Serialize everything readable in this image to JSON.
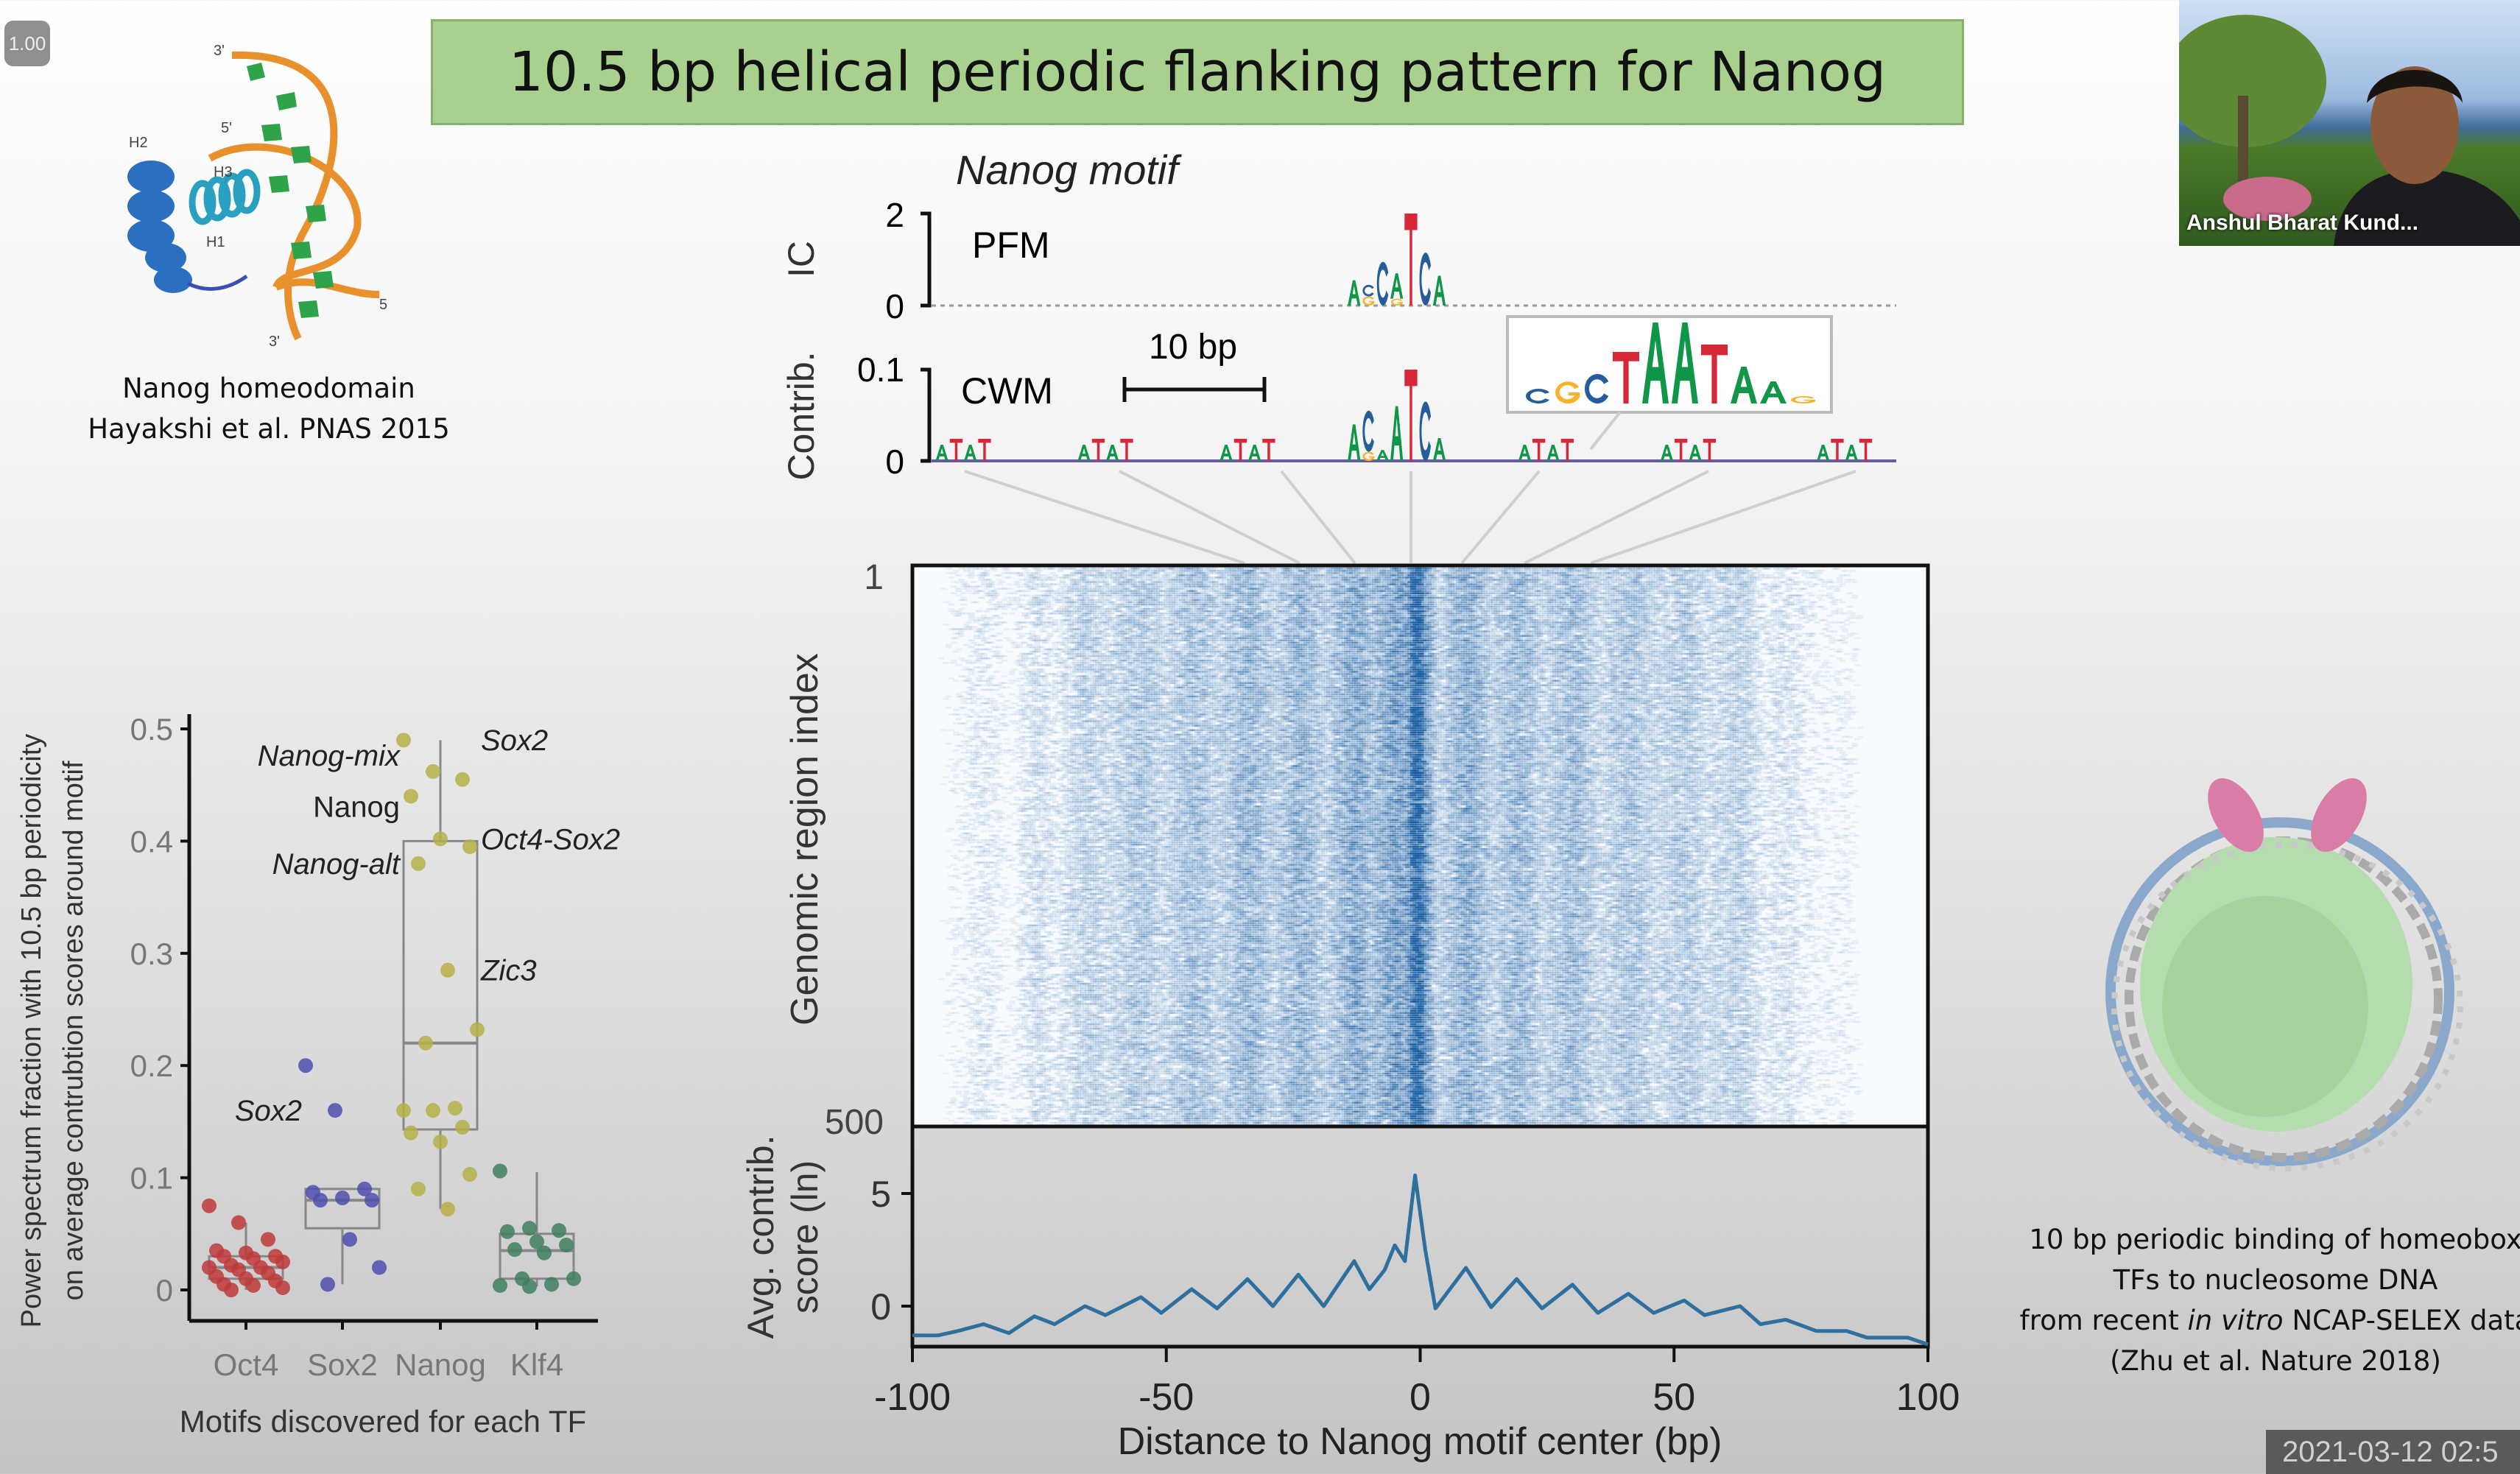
{
  "slide": {
    "title": "10.5 bp helical periodic flanking pattern for Nanog",
    "protein_caption": [
      "Nanog homeodomain",
      "Hayakshi et al. PNAS 2015"
    ],
    "protein_labels": [
      "3'",
      "5'",
      "H2",
      "H3",
      "H1",
      "5",
      "3'"
    ],
    "nucleosome_caption": {
      "line1": "10 bp periodic binding of homeobox",
      "line2": "TFs to nucleosome DNA",
      "line3_pre": "from recent ",
      "line3_italic": "in vitro",
      "line3_post": " NCAP-SELEX data",
      "line4": "(Zhu et al. Nature 2018)"
    }
  },
  "player": {
    "speed_badge": "1.00",
    "timestamp": "2021-03-12 02:5",
    "participant_name": "Anshul Bharat Kund..."
  },
  "colors": {
    "title_bg": "#a9d08e",
    "A": "#109648",
    "C": "#255c99",
    "G": "#f7b32b",
    "T": "#d62839",
    "line": "#2e6f9e",
    "Oct4": "#c0393b",
    "Sox2": "#4f4fb0",
    "Nanog": "#b5b048",
    "Klf4": "#3f7f5f"
  },
  "chart_data": [
    {
      "type": "scatter",
      "subtype": "box-with-jittered-points",
      "xlabel": "Motifs discovered for each TF",
      "ylabel": [
        "Power spectrum fraction with 10.5 bp periodicity",
        "on average contrubtion scores around motif"
      ],
      "categories": [
        "Oct4",
        "Sox2",
        "Nanog",
        "Klf4"
      ],
      "yticks": [
        "0",
        "0.1",
        "0.2",
        "0.3",
        "0.4",
        "0.5"
      ],
      "ylim": [
        0,
        0.5
      ],
      "grid": false,
      "series": [
        {
          "category": "Oct4",
          "points": [
            0.075,
            0.06,
            0.045,
            0.035,
            0.033,
            0.03,
            0.03,
            0.028,
            0.025,
            0.022,
            0.02,
            0.02,
            0.018,
            0.015,
            0.012,
            0.01,
            0.008,
            0.005,
            0.004,
            0.002,
            0.0
          ],
          "box": {
            "min": 0.0,
            "q1": 0.01,
            "median": 0.02,
            "q3": 0.03,
            "max": 0.06
          }
        },
        {
          "category": "Sox2",
          "points": [
            0.2,
            0.16,
            0.09,
            0.087,
            0.082,
            0.08,
            0.08,
            0.045,
            0.02,
            0.005
          ],
          "box": {
            "min": 0.005,
            "q1": 0.055,
            "median": 0.08,
            "q3": 0.09,
            "max": 0.09
          }
        },
        {
          "category": "Nanog",
          "points": [
            0.49,
            0.462,
            0.455,
            0.44,
            0.402,
            0.395,
            0.38,
            0.285,
            0.232,
            0.22,
            0.162,
            0.16,
            0.16,
            0.145,
            0.14,
            0.132,
            0.103,
            0.09,
            0.072
          ],
          "box": {
            "min": 0.072,
            "q1": 0.143,
            "median": 0.22,
            "q3": 0.4,
            "max": 0.49
          }
        },
        {
          "category": "Klf4",
          "points": [
            0.106,
            0.055,
            0.053,
            0.052,
            0.043,
            0.04,
            0.036,
            0.033,
            0.01,
            0.01,
            0.005,
            0.004,
            0.003
          ],
          "box": {
            "min": 0.003,
            "q1": 0.01,
            "median": 0.035,
            "q3": 0.05,
            "max": 0.105
          }
        }
      ],
      "annotations": [
        {
          "text": "Nanog-mix",
          "category": "Nanog",
          "y": 0.462,
          "side": "left",
          "italic": true
        },
        {
          "text": "Nanog",
          "category": "Nanog",
          "y": 0.44,
          "side": "left",
          "italic": false
        },
        {
          "text": "Nanog-alt",
          "category": "Nanog",
          "y": 0.38,
          "side": "left",
          "italic": true
        },
        {
          "text": "Sox2",
          "category": "Nanog",
          "y": 0.49,
          "side": "right",
          "italic": true
        },
        {
          "text": "Oct4-Sox2",
          "category": "Nanog",
          "y": 0.402,
          "side": "right",
          "italic": true
        },
        {
          "text": "Zic3",
          "category": "Nanog",
          "y": 0.285,
          "side": "right",
          "italic": true
        },
        {
          "text": "Sox2",
          "category": "Sox2",
          "y": 0.16,
          "side": "left",
          "italic": true
        }
      ]
    },
    {
      "type": "logo",
      "title": "Nanog motif",
      "tracks": [
        {
          "name": "PFM",
          "ylabel": "IC",
          "yticks": [
            "0",
            "2"
          ],
          "ylim": [
            0,
            2
          ],
          "stacks": [
            {
              "pos": -4,
              "letters": [
                [
                  "A",
                  0.55
                ]
              ]
            },
            {
              "pos": -3,
              "letters": [
                [
                  "G",
                  0.2
                ],
                [
                  "C",
                  0.25
                ]
              ]
            },
            {
              "pos": -2,
              "letters": [
                [
                  "C",
                  0.95
                ]
              ]
            },
            {
              "pos": -1,
              "letters": [
                [
                  "G",
                  0.15
                ],
                [
                  "A",
                  0.55
                ]
              ]
            },
            {
              "pos": 0,
              "letters": [
                [
                  "T",
                  2.0
                ]
              ]
            },
            {
              "pos": 1,
              "letters": [
                [
                  "C",
                  1.15
                ]
              ]
            },
            {
              "pos": 2,
              "letters": [
                [
                  "A",
                  0.65
                ]
              ]
            }
          ]
        },
        {
          "name": "CWM",
          "ylabel": "Contrib.",
          "yticks": [
            "0",
            "0.1"
          ],
          "ylim": [
            0,
            0.1
          ],
          "scale_bar": "10 bp",
          "stacks": [
            {
              "pos": -4,
              "letters": [
                [
                  "A",
                  0.04
                ]
              ]
            },
            {
              "pos": -3,
              "letters": [
                [
                  "G",
                  0.01
                ],
                [
                  "C",
                  0.045
                ]
              ]
            },
            {
              "pos": -2,
              "letters": [
                [
                  "A",
                  0.012
                ]
              ]
            },
            {
              "pos": -1,
              "letters": [
                [
                  "A",
                  0.06
                ]
              ]
            },
            {
              "pos": 0,
              "letters": [
                [
                  "T",
                  0.1
                ]
              ]
            },
            {
              "pos": 1,
              "letters": [
                [
                  "C",
                  0.065
                ]
              ]
            },
            {
              "pos": 2,
              "letters": [
                [
                  "A",
                  0.025
                ]
              ]
            }
          ],
          "periodic_bumps_bp": [
            -31,
            -21,
            -11,
            10,
            20,
            31
          ],
          "inset_letters": [
            [
              "C",
              0.02
            ],
            [
              "G",
              0.03
            ],
            [
              "C",
              0.04
            ],
            [
              "T",
              0.07
            ],
            [
              "A",
              0.11
            ],
            [
              "A",
              0.11
            ],
            [
              "T",
              0.08
            ],
            [
              "A",
              0.05
            ],
            [
              "A",
              0.03
            ],
            [
              "G",
              0.01
            ]
          ]
        }
      ]
    },
    {
      "type": "heatmap",
      "ylabel": "Genomic region index",
      "yticks": [
        "1",
        "500"
      ],
      "ylim": [
        1,
        500
      ],
      "xlim": [
        -100,
        100
      ],
      "colormap": [
        "#ffffff",
        "#0b4f8a"
      ]
    },
    {
      "type": "line",
      "xlabel": "Distance to Nanog motif center (bp)",
      "ylabel": [
        "Avg. contrib.",
        "score (ln)"
      ],
      "xticks": [
        "-100",
        "-50",
        "0",
        "50",
        "100"
      ],
      "yticks": [
        "0",
        "5"
      ],
      "xlim": [
        -100,
        100
      ],
      "ylim": [
        -1.8,
        8.2
      ],
      "grid": false,
      "x": [
        -100,
        -95,
        -91,
        -86,
        -81,
        -76,
        -72,
        -66,
        -62,
        -55,
        -51,
        -45,
        -40,
        -34,
        -29,
        -24,
        -19,
        -13,
        -10,
        -7,
        -5,
        -3,
        -1,
        1,
        3,
        9,
        14,
        19,
        24,
        30,
        35,
        41,
        46,
        52,
        56,
        63,
        67,
        72,
        78,
        84,
        88,
        93,
        96,
        100
      ],
      "y": [
        -1.3,
        -1.3,
        -1.1,
        -0.8,
        -1.2,
        -0.45,
        -0.8,
        0.0,
        -0.4,
        0.4,
        -0.3,
        0.75,
        -0.1,
        1.2,
        0.0,
        1.4,
        0.0,
        2.0,
        0.75,
        1.6,
        2.7,
        2.0,
        5.8,
        2.5,
        -0.1,
        1.7,
        -0.05,
        1.2,
        -0.1,
        0.95,
        -0.3,
        0.55,
        -0.3,
        0.25,
        -0.4,
        0.0,
        -0.8,
        -0.6,
        -1.1,
        -1.1,
        -1.4,
        -1.4,
        -1.4,
        -1.7
      ]
    }
  ]
}
